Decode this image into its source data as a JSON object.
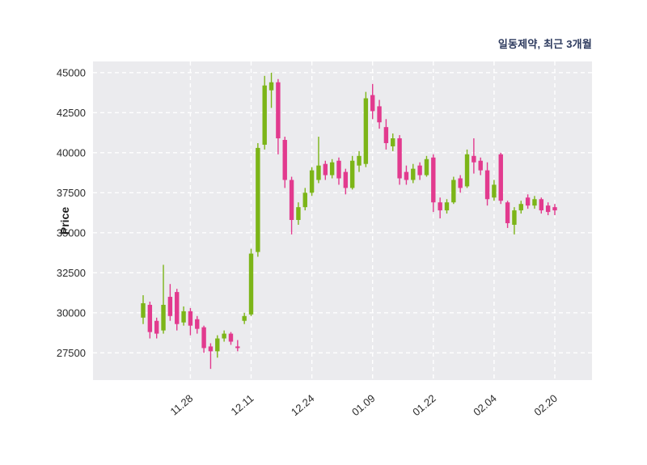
{
  "title": "일동제약, 최근 3개월",
  "colors": {
    "up": "#7cb518",
    "down": "#e23a8e",
    "plot_bg": "#ebebee",
    "grid": "#ffffff",
    "title_text": "#2d3a5e",
    "tick_text": "#2b2b2b",
    "figure_bg": "#ffffff"
  },
  "chart_data": {
    "type": "candlestick",
    "title": "일동제약, 최근 3개월",
    "xlabel": "",
    "ylabel": "Price",
    "grid": true,
    "legend": false,
    "ylim": [
      25800,
      45700
    ],
    "y_ticks": [
      27500,
      30000,
      32500,
      35000,
      37500,
      40000,
      42500,
      45000
    ],
    "x_ticks": [
      {
        "index": 7,
        "label": "11.28"
      },
      {
        "index": 16,
        "label": "12.11"
      },
      {
        "index": 25,
        "label": "12.24"
      },
      {
        "index": 34,
        "label": "01.09"
      },
      {
        "index": 43,
        "label": "01.22"
      },
      {
        "index": 52,
        "label": "02.04"
      },
      {
        "index": 61,
        "label": "02.20"
      }
    ],
    "candles_format": [
      "open",
      "high",
      "low",
      "close"
    ],
    "candles": [
      [
        29700,
        31100,
        29300,
        30600
      ],
      [
        30500,
        30700,
        28400,
        28800
      ],
      [
        29500,
        29700,
        28400,
        28700
      ],
      [
        28900,
        33000,
        28700,
        30500
      ],
      [
        31000,
        31800,
        29500,
        29800
      ],
      [
        31300,
        31500,
        28900,
        29300
      ],
      [
        29400,
        30400,
        29200,
        30100
      ],
      [
        30100,
        30300,
        28600,
        29200
      ],
      [
        29600,
        29800,
        28700,
        29000
      ],
      [
        29100,
        29200,
        27500,
        27800
      ],
      [
        27900,
        28100,
        26500,
        27600
      ],
      [
        27600,
        28600,
        27200,
        28400
      ],
      [
        28400,
        28900,
        28200,
        28700
      ],
      [
        28700,
        28800,
        28000,
        28200
      ],
      [
        27900,
        28300,
        27600,
        27800
      ],
      [
        29500,
        30000,
        29300,
        29800
      ],
      [
        29900,
        34000,
        29800,
        33700
      ],
      [
        33800,
        40600,
        33500,
        40300
      ],
      [
        40500,
        44800,
        40200,
        44200
      ],
      [
        43900,
        45000,
        42800,
        44400
      ],
      [
        44400,
        44600,
        39900,
        40900
      ],
      [
        40800,
        41000,
        37800,
        38300
      ],
      [
        38300,
        38500,
        34900,
        35800
      ],
      [
        35800,
        36900,
        35500,
        36600
      ],
      [
        36600,
        37800,
        36400,
        37500
      ],
      [
        37500,
        39100,
        37300,
        38900
      ],
      [
        38300,
        41000,
        38100,
        39200
      ],
      [
        39300,
        39500,
        38300,
        38600
      ],
      [
        38600,
        39600,
        38400,
        39400
      ],
      [
        39500,
        39700,
        38000,
        38400
      ],
      [
        38800,
        39000,
        37400,
        37800
      ],
      [
        37800,
        39800,
        37700,
        39500
      ],
      [
        39200,
        40100,
        38800,
        39800
      ],
      [
        39300,
        43800,
        39100,
        43400
      ],
      [
        43600,
        44300,
        42100,
        42600
      ],
      [
        42900,
        43300,
        41500,
        41900
      ],
      [
        41600,
        42100,
        40200,
        40600
      ],
      [
        40400,
        41200,
        40100,
        40900
      ],
      [
        40900,
        41100,
        38000,
        38400
      ],
      [
        38800,
        39200,
        38000,
        38300
      ],
      [
        38300,
        39300,
        38100,
        39000
      ],
      [
        39200,
        39400,
        38300,
        38600
      ],
      [
        38600,
        39800,
        38500,
        39600
      ],
      [
        39700,
        39900,
        36300,
        36900
      ],
      [
        36900,
        37200,
        35900,
        36400
      ],
      [
        36400,
        37100,
        36200,
        36900
      ],
      [
        36900,
        38500,
        36800,
        38300
      ],
      [
        38400,
        38600,
        37500,
        37800
      ],
      [
        37900,
        40200,
        37800,
        39900
      ],
      [
        39800,
        40900,
        38700,
        39400
      ],
      [
        39500,
        39700,
        38600,
        38900
      ],
      [
        38900,
        39400,
        36700,
        37100
      ],
      [
        37200,
        38300,
        37000,
        38000
      ],
      [
        39900,
        40000,
        36800,
        37000
      ],
      [
        36900,
        37000,
        35300,
        35600
      ],
      [
        35500,
        36600,
        34900,
        36400
      ],
      [
        36400,
        37000,
        36200,
        36800
      ],
      [
        37200,
        37400,
        36500,
        36700
      ],
      [
        36700,
        37300,
        36500,
        37100
      ],
      [
        37100,
        37200,
        36200,
        36400
      ],
      [
        36700,
        36900,
        36100,
        36300
      ],
      [
        36600,
        36800,
        36100,
        36400
      ]
    ]
  }
}
